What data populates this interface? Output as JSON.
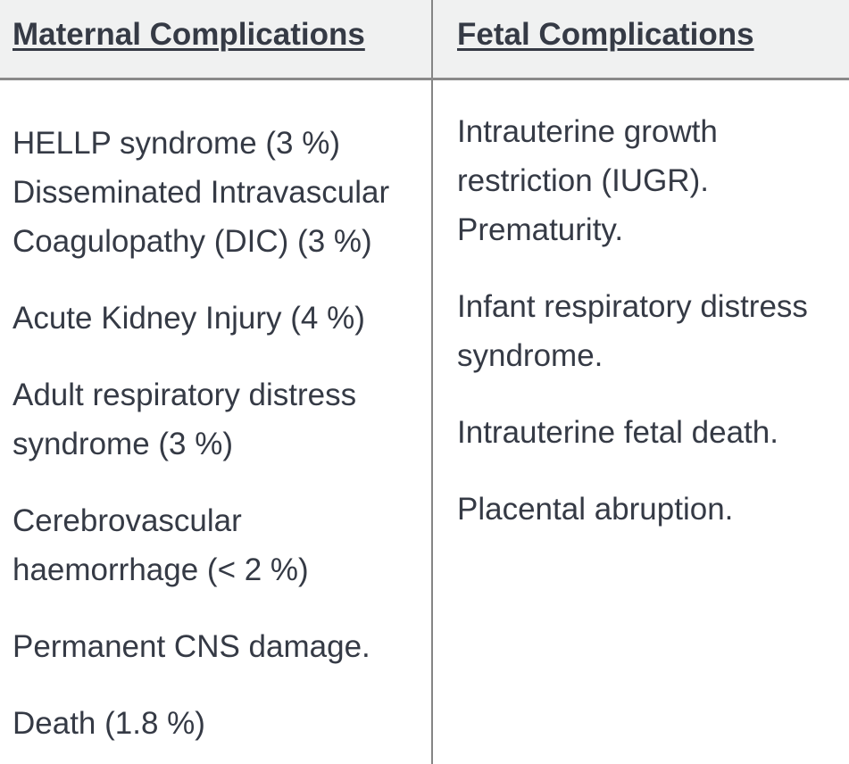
{
  "table": {
    "columns": [
      {
        "header": "Maternal Complications",
        "paragraphs": [
          "HELLP syndrome (3 %)\nDisseminated Intravascular\nCoagulopathy (DIC) (3 %)",
          "Acute Kidney Injury (4 %)",
          "Adult respiratory distress\nsyndrome (3 %)",
          "Cerebrovascular\nhaemorrhage (< 2 %)",
          "Permanent CNS damage.",
          "Death (1.8 %)"
        ]
      },
      {
        "header": "Fetal Complications",
        "paragraphs": [
          "Intrauterine growth\nrestriction (IUGR).\nPrematurity.",
          "Infant respiratory distress\nsyndrome.",
          "Intrauterine fetal death.",
          "Placental abruption."
        ]
      }
    ]
  },
  "colors": {
    "text": "#353a45",
    "header_bg": "#f0f1f1",
    "body_bg": "#ffffff",
    "border": "#8a8a8a",
    "divider": "#858585"
  }
}
